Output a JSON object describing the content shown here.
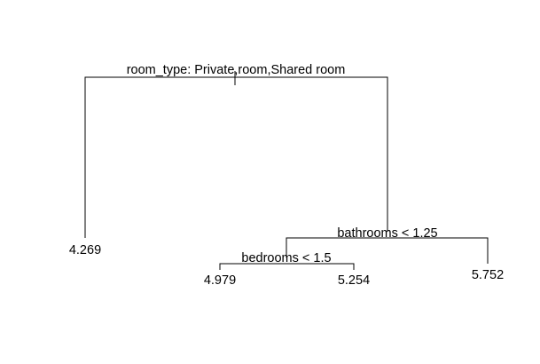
{
  "tree": {
    "root_split": "room_type: Private,room,Shared room",
    "bathrooms_split": "bathrooms < 1.25",
    "bedrooms_split": "bedrooms < 1.5",
    "leaf_left": "4.269",
    "leaf_bed_left": "4.979",
    "leaf_bed_right": "5.254",
    "leaf_bath_right": "5.752"
  }
}
